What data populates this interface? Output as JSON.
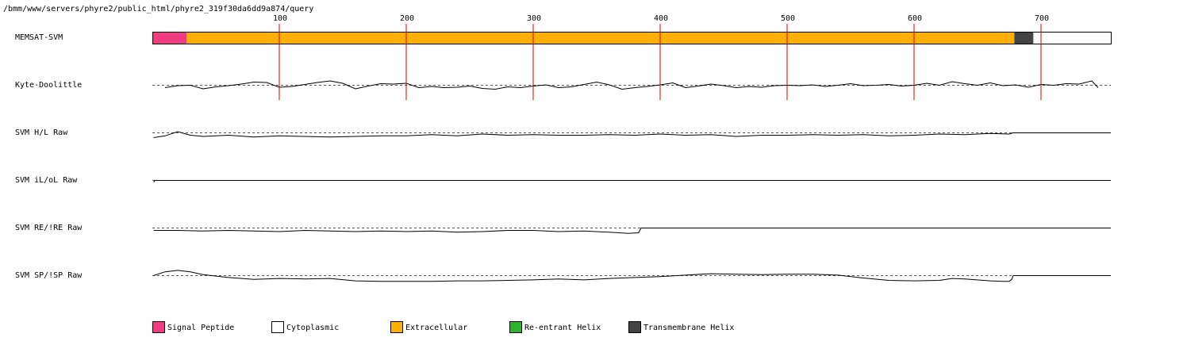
{
  "page": {
    "path": "/bmm/www/servers/phyre2/public_html/phyre2_319f30da6dd9a874/query"
  },
  "chart_data": {
    "type": "line",
    "title": "",
    "sequence_length": 755,
    "ticks": [
      100,
      200,
      300,
      400,
      500,
      600,
      700
    ],
    "colors": {
      "signal_peptide": "#f23c82",
      "cytoplasmic": "#ffffff",
      "extracellular": "#ffb000",
      "reentrant_helix": "#2bb52b",
      "transmembrane_helix": "#444444",
      "tick_line": "#e00000",
      "trace": "#000000"
    },
    "memsat_segments": [
      {
        "type": "signal_peptide",
        "start": 1,
        "end": 27
      },
      {
        "type": "extracellular",
        "start": 28,
        "end": 679
      },
      {
        "type": "transmembrane_helix",
        "start": 680,
        "end": 694
      },
      {
        "type": "cytoplasmic",
        "start": 695,
        "end": 755
      }
    ],
    "tracks": [
      {
        "label": "MEMSAT-SVM",
        "kind": "bar"
      },
      {
        "label": "Kyte-Doolittle",
        "kind": "trace",
        "x": [
          10,
          20,
          30,
          40,
          50,
          60,
          70,
          80,
          90,
          100,
          110,
          120,
          130,
          140,
          150,
          160,
          170,
          180,
          190,
          200,
          210,
          220,
          230,
          240,
          250,
          260,
          270,
          280,
          290,
          300,
          310,
          320,
          330,
          340,
          350,
          360,
          370,
          380,
          390,
          400,
          410,
          420,
          430,
          440,
          450,
          460,
          470,
          480,
          490,
          500,
          510,
          520,
          530,
          540,
          550,
          560,
          570,
          580,
          590,
          600,
          610,
          620,
          630,
          640,
          650,
          660,
          670,
          680,
          690,
          700,
          710,
          720,
          730,
          740,
          745
        ],
        "values": [
          -0.6,
          -0.1,
          0.0,
          -0.9,
          -0.4,
          -0.1,
          0.3,
          0.8,
          0.7,
          -0.5,
          -0.3,
          0.2,
          0.7,
          1.1,
          0.5,
          -0.9,
          -0.2,
          0.4,
          0.3,
          0.5,
          -0.6,
          -0.3,
          -0.6,
          -0.5,
          -0.2,
          -0.8,
          -1.0,
          -0.4,
          -0.6,
          -0.2,
          0.1,
          -0.6,
          -0.4,
          0.2,
          0.8,
          0.1,
          -1.0,
          -0.6,
          -0.3,
          0.1,
          0.6,
          -0.6,
          -0.2,
          0.3,
          -0.1,
          -0.6,
          -0.3,
          -0.5,
          -0.1,
          0.0,
          -0.1,
          0.1,
          -0.3,
          0.0,
          0.4,
          -0.1,
          0.0,
          0.2,
          -0.2,
          0.0,
          0.5,
          0.0,
          0.9,
          0.4,
          0.0,
          0.6,
          -0.1,
          0.1,
          -0.5,
          0.2,
          0.0,
          0.4,
          0.3,
          1.1,
          -0.6
        ],
        "range": [
          -3,
          3
        ]
      },
      {
        "label": "SVM H/L Raw",
        "kind": "trace",
        "x": [
          1,
          10,
          20,
          30,
          40,
          60,
          80,
          100,
          120,
          140,
          160,
          180,
          200,
          220,
          240,
          260,
          280,
          300,
          320,
          340,
          360,
          380,
          400,
          420,
          440,
          460,
          480,
          500,
          520,
          540,
          560,
          580,
          600,
          620,
          640,
          660,
          675,
          678,
          755
        ],
        "values": [
          -0.8,
          -0.5,
          0.2,
          -0.4,
          -0.6,
          -0.4,
          -0.7,
          -0.5,
          -0.6,
          -0.7,
          -0.6,
          -0.5,
          -0.5,
          -0.3,
          -0.5,
          -0.2,
          -0.4,
          -0.3,
          -0.4,
          -0.4,
          -0.3,
          -0.4,
          -0.2,
          -0.4,
          -0.3,
          -0.6,
          -0.4,
          -0.4,
          -0.3,
          -0.4,
          -0.3,
          -0.5,
          -0.4,
          -0.2,
          -0.3,
          -0.1,
          -0.2,
          0.0,
          0.0
        ],
        "range": [
          -2,
          2
        ]
      },
      {
        "label": "SVM iL/oL Raw",
        "kind": "trace",
        "x": [
          1,
          2,
          755
        ],
        "values": [
          -0.3,
          0.0,
          0.0
        ],
        "range": [
          -2,
          2
        ]
      },
      {
        "label": "SVM RE/!RE Raw",
        "kind": "trace",
        "x": [
          1,
          20,
          40,
          60,
          80,
          100,
          120,
          140,
          160,
          180,
          200,
          220,
          240,
          260,
          280,
          300,
          320,
          340,
          360,
          375,
          383,
          385,
          755
        ],
        "values": [
          -0.4,
          -0.4,
          -0.5,
          -0.4,
          -0.5,
          -0.6,
          -0.4,
          -0.5,
          -0.6,
          -0.5,
          -0.6,
          -0.5,
          -0.7,
          -0.6,
          -0.4,
          -0.4,
          -0.6,
          -0.5,
          -0.7,
          -0.9,
          -0.8,
          0.0,
          0.0
        ],
        "range": [
          -2,
          2
        ]
      },
      {
        "label": "SVM SP/!SP Raw",
        "kind": "trace",
        "x": [
          1,
          10,
          20,
          30,
          40,
          60,
          80,
          100,
          120,
          140,
          160,
          180,
          200,
          220,
          240,
          260,
          280,
          300,
          320,
          340,
          360,
          380,
          400,
          420,
          440,
          460,
          480,
          500,
          520,
          540,
          560,
          580,
          600,
          620,
          630,
          640,
          660,
          670,
          675,
          677,
          678,
          755
        ],
        "values": [
          0.0,
          0.8,
          1.1,
          0.8,
          0.2,
          -0.4,
          -0.8,
          -0.6,
          -0.7,
          -0.6,
          -1.1,
          -1.2,
          -1.2,
          -1.2,
          -1.1,
          -1.1,
          -1.0,
          -0.9,
          -0.7,
          -0.9,
          -0.6,
          -0.4,
          -0.2,
          0.1,
          0.4,
          0.3,
          0.2,
          0.3,
          0.3,
          0.1,
          -0.5,
          -1.0,
          -1.1,
          -1.0,
          -0.6,
          -0.7,
          -1.1,
          -1.2,
          -1.2,
          -0.8,
          0.0,
          0.0
        ],
        "range": [
          -2.5,
          2.5
        ]
      }
    ],
    "legend": [
      {
        "label": "Signal Peptide",
        "color_key": "signal_peptide"
      },
      {
        "label": "Cytoplasmic",
        "color_key": "cytoplasmic"
      },
      {
        "label": "Extracellular",
        "color_key": "extracellular"
      },
      {
        "label": "Re-entrant Helix",
        "color_key": "reentrant_helix"
      },
      {
        "label": "Transmembrane Helix",
        "color_key": "transmembrane_helix"
      }
    ],
    "legend_position": "bottom"
  }
}
